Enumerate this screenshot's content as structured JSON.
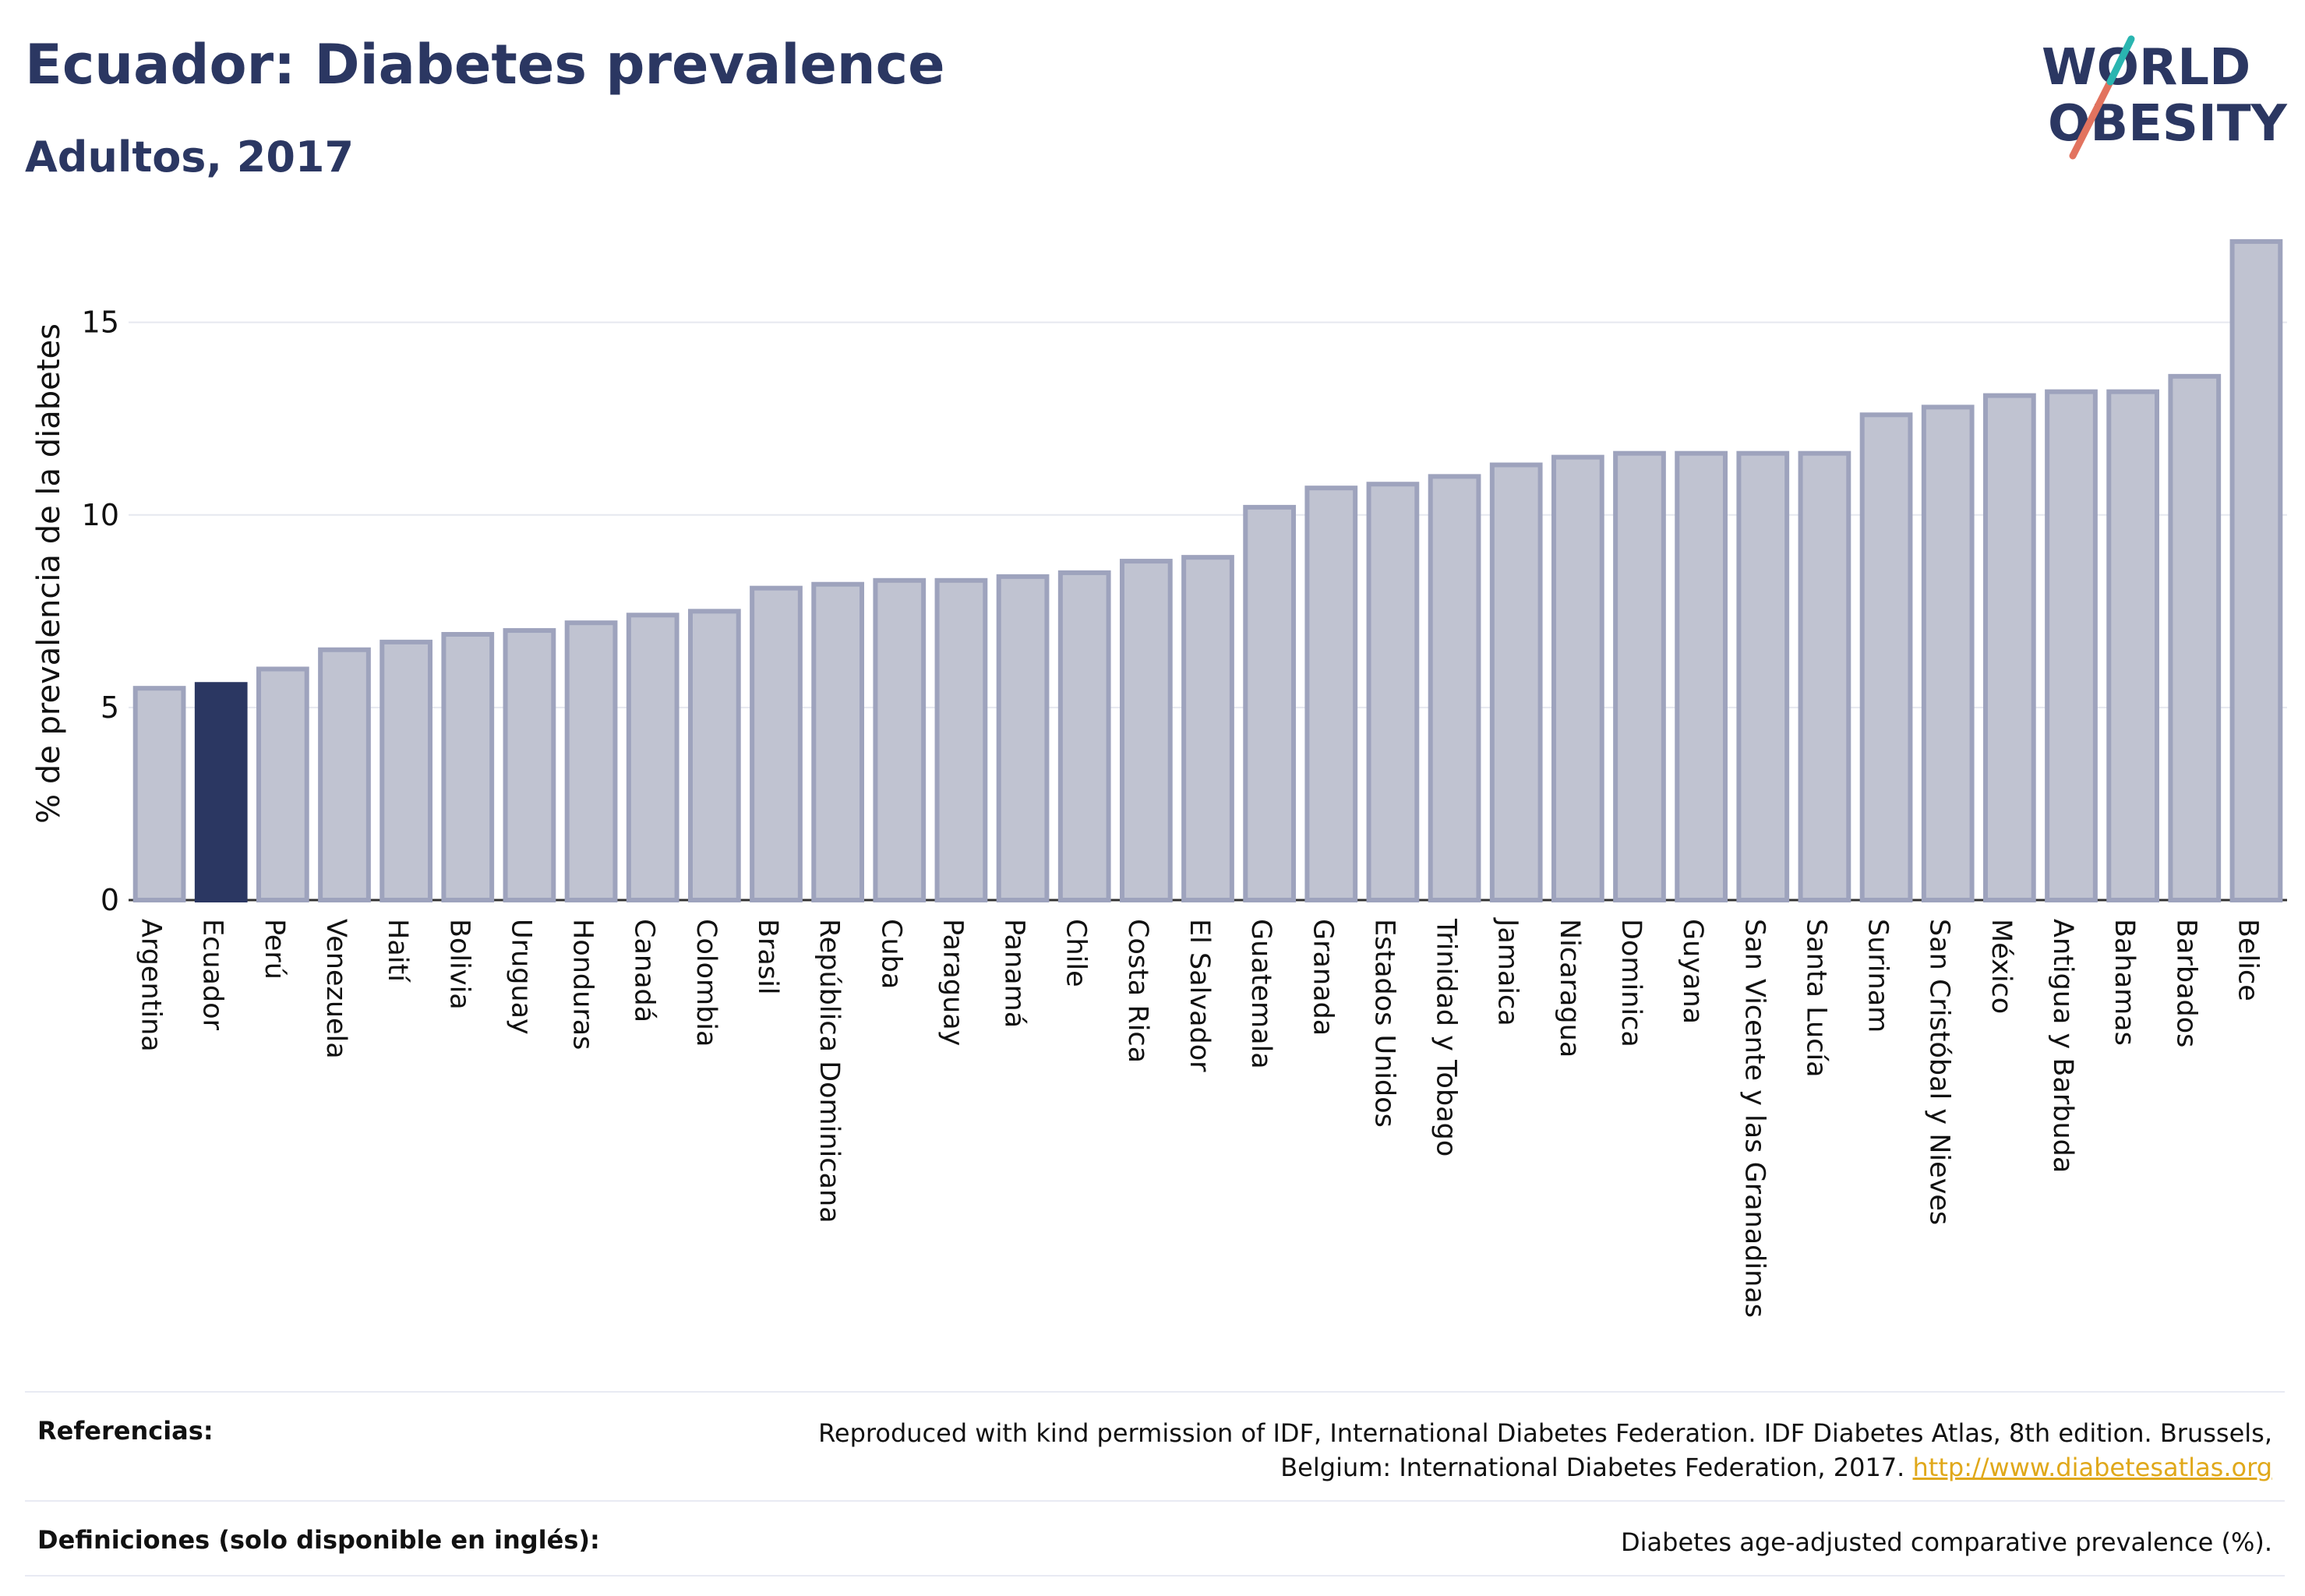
{
  "title": "Ecuador: Diabetes prevalence",
  "subtitle": "Adultos, 2017",
  "logo": {
    "line1": "WORLD",
    "line2": "OBESITY"
  },
  "colors": {
    "bar": "#c0c3d1",
    "bar_stroke": "#9ea3bd",
    "highlight": "#2b3762",
    "grid": "#e6e8ef",
    "logo_red": "#e2735f",
    "logo_teal": "#2ab5b0"
  },
  "chart_data": {
    "type": "bar",
    "ylabel": "% de prevalencia de la diabetes",
    "xlabel": "",
    "ylim": [
      0,
      17.3
    ],
    "yticks": [
      0,
      5,
      10,
      15
    ],
    "highlight": "Ecuador",
    "grid": true,
    "categories": [
      "Argentina",
      "Ecuador",
      "Perú",
      "Venezuela",
      "Haití",
      "Bolivia",
      "Uruguay",
      "Honduras",
      "Canadá",
      "Colombia",
      "Brasil",
      "República Dominicana",
      "Cuba",
      "Paraguay",
      "Panamá",
      "Chile",
      "Costa Rica",
      "El Salvador",
      "Guatemala",
      "Granada",
      "Estados Unidos",
      "Trinidad y Tobago",
      "Jamaica",
      "Nicaragua",
      "Dominica",
      "Guyana",
      "San Vicente y las Granadinas",
      "Santa Lucía",
      "Surinam",
      "San Cristóbal y Nieves",
      "México",
      "Antigua y Barbuda",
      "Bahamas",
      "Barbados",
      "Belice"
    ],
    "values": [
      5.5,
      5.6,
      6.0,
      6.5,
      6.7,
      6.9,
      7.0,
      7.2,
      7.4,
      7.5,
      8.1,
      8.2,
      8.3,
      8.3,
      8.4,
      8.5,
      8.8,
      8.9,
      10.2,
      10.7,
      10.8,
      11.0,
      11.3,
      11.5,
      11.6,
      11.6,
      11.6,
      11.6,
      12.6,
      12.8,
      13.1,
      13.2,
      13.2,
      13.6,
      17.1
    ]
  },
  "footer": {
    "references_label": "Referencias:",
    "references_text": "Reproduced with kind permission of IDF, International Diabetes Federation. IDF Diabetes Atlas, 8th edition. Brussels, Belgium: International Diabetes Federation, 2017.",
    "references_link": "http://www.diabetesatlas.org",
    "definitions_label": "Definiciones (solo disponible en inglés):",
    "definitions_text": "Diabetes age-adjusted comparative prevalence (%)."
  }
}
